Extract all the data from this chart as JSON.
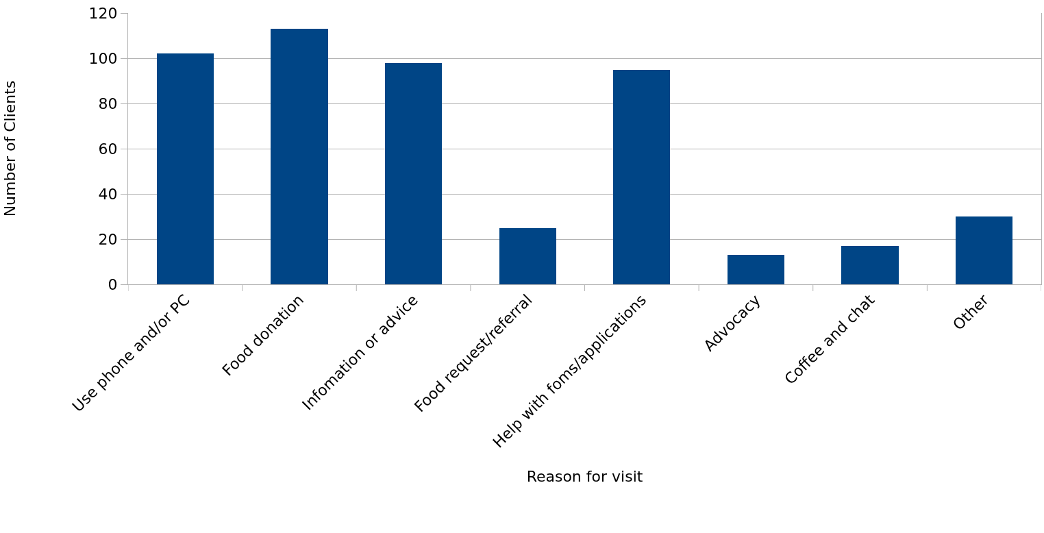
{
  "chart_data": {
    "type": "bar",
    "xlabel": "Reason for visit",
    "ylabel": "Number of Clients",
    "categories": [
      "Use phone and/or PC",
      "Food donation",
      "Infomation or advice",
      "Food request/referral",
      "Help with foms/applications",
      "Advocacy",
      "Coffee and chat",
      "Other"
    ],
    "values": [
      102,
      113,
      98,
      25,
      95,
      13,
      17,
      30
    ],
    "color": "#004586",
    "ylim": [
      0,
      120
    ],
    "yticks": [
      0,
      20,
      40,
      60,
      80,
      100,
      120
    ],
    "grid": "y"
  }
}
